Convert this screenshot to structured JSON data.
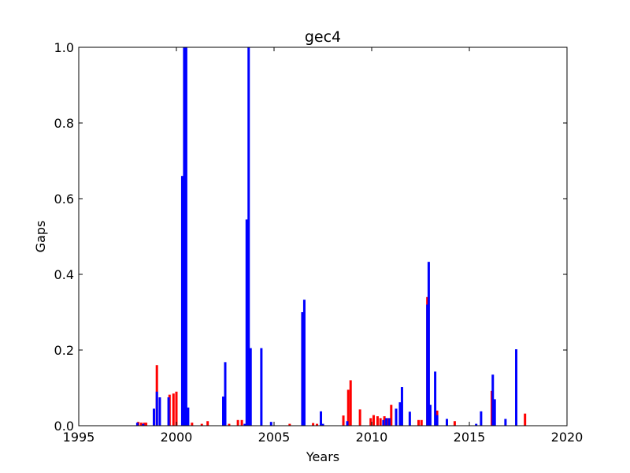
{
  "chart_data": {
    "type": "bar",
    "title": "gec4",
    "xlabel": "Years",
    "ylabel": "Gaps",
    "xlim": [
      1995,
      2020
    ],
    "ylim": [
      0,
      1.0
    ],
    "xticks": [
      "1995",
      "2000",
      "2005",
      "2010",
      "2015",
      "2020"
    ],
    "yticks": [
      "0.0",
      "0.2",
      "0.4",
      "0.6",
      "0.8",
      "1.0"
    ],
    "grid": false,
    "legend": "none",
    "series": [
      {
        "color": "#ff0000",
        "x": [
          1998.05,
          1998.2,
          1998.35,
          1998.45,
          1999.0,
          1999.65,
          1999.85,
          2000.0,
          2000.55,
          2000.8,
          2001.3,
          2001.6,
          2002.45,
          2002.7,
          2003.15,
          2003.35,
          2003.65,
          2005.8,
          2006.45,
          2007.0,
          2007.2,
          2008.55,
          2008.8,
          2008.92,
          2009.4,
          2009.95,
          2010.1,
          2010.3,
          2010.45,
          2010.65,
          2010.8,
          2011.0,
          2012.4,
          2012.55,
          2012.85,
          2013.35,
          2014.25,
          2016.15,
          2017.85
        ],
        "values": [
          0.01,
          0.008,
          0.008,
          0.008,
          0.16,
          0.082,
          0.085,
          0.09,
          0.022,
          0.008,
          0.005,
          0.012,
          0.01,
          0.005,
          0.015,
          0.015,
          0.13,
          0.005,
          0.3,
          0.007,
          0.005,
          0.027,
          0.095,
          0.12,
          0.043,
          0.02,
          0.028,
          0.025,
          0.02,
          0.025,
          0.02,
          0.055,
          0.015,
          0.015,
          0.34,
          0.04,
          0.012,
          0.092,
          0.032
        ]
      },
      {
        "color": "#0000ff",
        "x": [
          1998.0,
          1998.3,
          1998.85,
          1999.0,
          1999.15,
          1999.6,
          2000.3,
          2000.4,
          2000.5,
          2000.6,
          2002.4,
          2002.5,
          2003.5,
          2003.6,
          2003.7,
          2003.8,
          2004.35,
          2004.85,
          2006.45,
          2006.55,
          2007.4,
          2007.5,
          2008.75,
          2010.6,
          2010.75,
          2010.9,
          2011.25,
          2011.45,
          2011.55,
          2011.95,
          2012.85,
          2012.92,
          2013.0,
          2013.25,
          2013.35,
          2013.85,
          2015.35,
          2015.6,
          2016.2,
          2016.3,
          2016.85,
          2017.4
        ],
        "values": [
          0.008,
          0.005,
          0.045,
          0.09,
          0.075,
          0.075,
          0.66,
          1.0,
          1.0,
          0.048,
          0.077,
          0.168,
          0.005,
          0.545,
          1.0,
          0.205,
          0.205,
          0.01,
          0.3,
          0.333,
          0.038,
          0.005,
          0.012,
          0.015,
          0.02,
          0.02,
          0.045,
          0.062,
          0.102,
          0.037,
          0.32,
          0.433,
          0.055,
          0.143,
          0.028,
          0.018,
          0.005,
          0.038,
          0.135,
          0.07,
          0.018,
          0.202
        ]
      }
    ]
  }
}
